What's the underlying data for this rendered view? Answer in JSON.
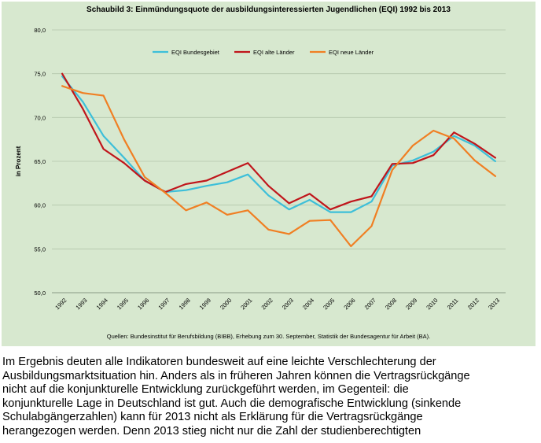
{
  "chart_data": {
    "type": "line",
    "title": "Schaubild 3: Einmündungsquote der ausbildungsinteressierten Jugendlichen (EQI) 1992 bis 2013",
    "xlabel": "",
    "ylabel": "in Prozent",
    "ylim": [
      50,
      80
    ],
    "yticks": [
      "80,0",
      "75,0",
      "70,0",
      "65,0",
      "60,0",
      "55,0",
      "50,0"
    ],
    "x": [
      "1992",
      "1993",
      "1994",
      "1995",
      "1996",
      "1997",
      "1998",
      "1999",
      "2000",
      "2001",
      "2002",
      "2003",
      "2004",
      "2005",
      "2006",
      "2007",
      "2008",
      "2009",
      "2010",
      "2011",
      "2012",
      "2013"
    ],
    "series": [
      {
        "name": "EQI Bundesgebiet",
        "color": "#3dbfd9",
        "values": [
          74.7,
          71.8,
          67.9,
          65.4,
          62.8,
          61.5,
          61.7,
          62.2,
          62.6,
          63.5,
          61.1,
          59.5,
          60.6,
          59.2,
          59.2,
          60.4,
          64.5,
          65.1,
          66.1,
          67.9,
          66.8,
          65.0
        ]
      },
      {
        "name": "EQI alte Länder",
        "color": "#c0151b",
        "values": [
          75.0,
          71.0,
          66.4,
          64.8,
          62.8,
          61.5,
          62.4,
          62.8,
          63.8,
          64.8,
          62.2,
          60.2,
          61.3,
          59.5,
          60.4,
          61.0,
          64.7,
          64.8,
          65.7,
          68.3,
          67.0,
          65.4
        ]
      },
      {
        "name": "EQI neue Länder",
        "color": "#f07f23",
        "values": [
          73.6,
          72.8,
          72.5,
          67.5,
          63.2,
          61.4,
          59.4,
          60.3,
          58.9,
          59.4,
          57.2,
          56.7,
          58.2,
          58.3,
          55.3,
          57.6,
          64.0,
          66.8,
          68.5,
          67.6,
          65.1,
          63.3
        ]
      }
    ],
    "grid": true,
    "legend": "top-center"
  },
  "source_note": "Quellen: Bundesinstitut für Berufsbildung (BIBB), Erhebung zum 30. September, Statistik der Bundesagentur für Arbeit (BA).",
  "body_lines": [
    "Im Ergebnis deuten alle Indikatoren bundesweit auf eine leichte Verschlechterung der",
    "Ausbildungsmarktsituation hin. Anders als in früheren Jahren können die Vertragsrückgänge",
    "nicht auf die konjunkturelle Entwicklung zurückgeführt werden, im Gegenteil: die",
    "konjunkturelle Lage in Deutschland ist gut. Auch die demografische Entwicklung (sinkende",
    "Schulabgängerzahlen) kann für 2013 nicht als Erklärung für die Vertragsrückgänge",
    "herangezogen werden. Denn 2013 stieg nicht nur die Zahl der studienberechtigten"
  ]
}
